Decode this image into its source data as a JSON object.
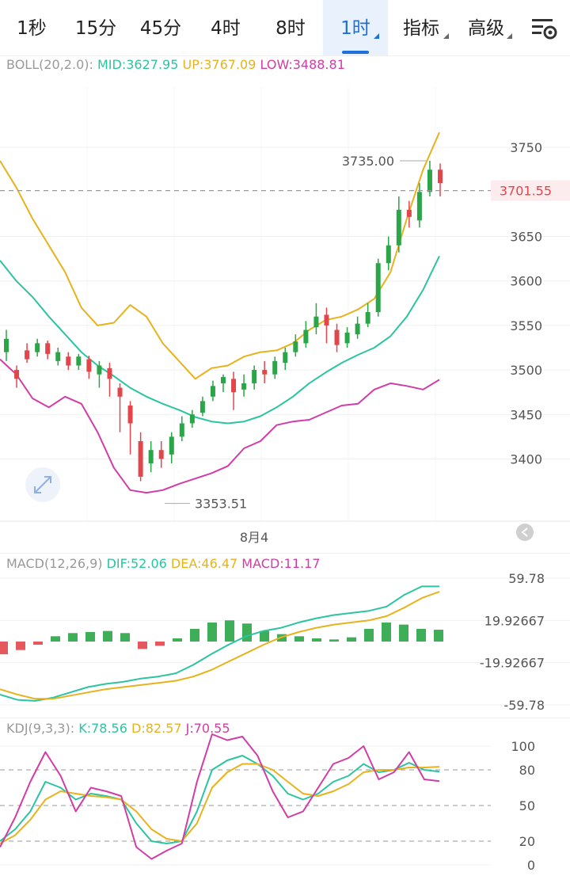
{
  "toolbar": {
    "tabs": [
      {
        "label": "1秒",
        "active": false
      },
      {
        "label": "15分",
        "active": false
      },
      {
        "label": "45分",
        "active": false
      },
      {
        "label": "4时",
        "active": false
      },
      {
        "label": "8时",
        "active": false
      },
      {
        "label": "1时",
        "active": true
      },
      {
        "label": "指标",
        "active": false
      },
      {
        "label": "高级",
        "active": false
      }
    ],
    "settings_icon": "settings-icon"
  },
  "colors": {
    "up": "#e2464b",
    "down": "#2aa547",
    "mid": "#2bc4a1",
    "upper": "#e8b21c",
    "lower": "#d23ca6",
    "dif": "#2bc4a1",
    "dea": "#e8b21c",
    "j": "#d23ca6",
    "price_tag": "#e2464b",
    "active_tab": "#1e6fd9"
  },
  "boll": {
    "name": "BOLL(20,2.0):",
    "mid_label": "MID:3627.95",
    "up_label": "UP:3767.09",
    "low_label": "LOW:3488.81",
    "current_price": "3701.55",
    "high_label": "3735.00",
    "low_mark_label": "3353.51",
    "date_label": "8月4",
    "collapse_icon": "chevron-left-icon",
    "expand_icon": "expand-icon"
  },
  "macd": {
    "name": "MACD(12,26,9)",
    "dif_label": "DIF:52.06",
    "dea_label": "DEA:46.47",
    "macd_label": "MACD:11.17"
  },
  "kdj": {
    "name": "KDJ(9,3,3):",
    "k_label": "K:78.56",
    "d_label": "D:82.57",
    "j_label": "J:70.55"
  },
  "chart_data": [
    {
      "type": "candlestick",
      "title": "BOLL(20,2.0)",
      "ylim": [
        3355,
        3800
      ],
      "y_ticks": [
        3400,
        3450,
        3500,
        3550,
        3600,
        3650,
        3750
      ],
      "x_labels": [
        "8月4"
      ],
      "last_price": 3701.55,
      "max_marked": 3735.0,
      "min_marked": 3353.51,
      "series": [
        {
          "name": "MID",
          "values": [
            3623,
            3600,
            3582,
            3560,
            3540,
            3520,
            3505,
            3493,
            3480,
            3470,
            3462,
            3455,
            3447,
            3442,
            3440,
            3442,
            3448,
            3458,
            3470,
            3485,
            3497,
            3508,
            3517,
            3525,
            3538,
            3560,
            3590,
            3628
          ]
        },
        {
          "name": "UP",
          "values": [
            3735,
            3705,
            3670,
            3640,
            3610,
            3570,
            3550,
            3553,
            3573,
            3560,
            3530,
            3510,
            3490,
            3502,
            3505,
            3515,
            3520,
            3522,
            3530,
            3545,
            3556,
            3560,
            3568,
            3580,
            3610,
            3670,
            3725,
            3767
          ]
        },
        {
          "name": "LOW",
          "values": [
            3512,
            3495,
            3468,
            3458,
            3470,
            3462,
            3430,
            3390,
            3365,
            3362,
            3365,
            3372,
            3378,
            3384,
            3392,
            3412,
            3420,
            3438,
            3442,
            3444,
            3452,
            3460,
            3462,
            3478,
            3485,
            3482,
            3478,
            3489
          ]
        }
      ],
      "candles": [
        [
          3520,
          3535,
          3510,
          3545
        ],
        [
          3500,
          3490,
          3480,
          3505
        ],
        [
          3522,
          3512,
          3508,
          3530
        ],
        [
          3520,
          3530,
          3515,
          3535
        ],
        [
          3530,
          3518,
          3512,
          3533
        ],
        [
          3510,
          3520,
          3505,
          3525
        ],
        [
          3515,
          3505,
          3500,
          3520
        ],
        [
          3505,
          3515,
          3500,
          3518
        ],
        [
          3512,
          3498,
          3490,
          3516
        ],
        [
          3495,
          3505,
          3480,
          3510
        ],
        [
          3502,
          3490,
          3470,
          3508
        ],
        [
          3480,
          3470,
          3430,
          3485
        ],
        [
          3460,
          3440,
          3405,
          3465
        ],
        [
          3420,
          3380,
          3375,
          3430
        ],
        [
          3395,
          3410,
          3385,
          3420
        ],
        [
          3410,
          3400,
          3390,
          3420
        ],
        [
          3405,
          3425,
          3395,
          3430
        ],
        [
          3425,
          3440,
          3420,
          3448
        ],
        [
          3440,
          3450,
          3435,
          3455
        ],
        [
          3452,
          3465,
          3448,
          3470
        ],
        [
          3470,
          3482,
          3465,
          3488
        ],
        [
          3485,
          3492,
          3475,
          3495
        ],
        [
          3490,
          3475,
          3455,
          3498
        ],
        [
          3478,
          3485,
          3470,
          3495
        ],
        [
          3485,
          3500,
          3478,
          3505
        ],
        [
          3500,
          3495,
          3485,
          3510
        ],
        [
          3495,
          3510,
          3490,
          3515
        ],
        [
          3508,
          3520,
          3500,
          3525
        ],
        [
          3520,
          3532,
          3515,
          3540
        ],
        [
          3530,
          3545,
          3525,
          3555
        ],
        [
          3548,
          3560,
          3540,
          3575
        ],
        [
          3562,
          3550,
          3530,
          3570
        ],
        [
          3545,
          3528,
          3520,
          3552
        ],
        [
          3530,
          3542,
          3525,
          3548
        ],
        [
          3540,
          3552,
          3535,
          3560
        ],
        [
          3552,
          3565,
          3548,
          3575
        ],
        [
          3565,
          3620,
          3560,
          3625
        ],
        [
          3620,
          3640,
          3612,
          3650
        ],
        [
          3640,
          3680,
          3632,
          3695
        ],
        [
          3680,
          3672,
          3660,
          3690
        ],
        [
          3668,
          3700,
          3660,
          3710
        ],
        [
          3700,
          3725,
          3695,
          3735
        ],
        [
          3725,
          3710,
          3695,
          3732
        ]
      ]
    },
    {
      "type": "bar",
      "title": "MACD(12,26,9)",
      "ylim": [
        -59.78,
        59.78
      ],
      "y_ticks": [
        59.78,
        19.92667,
        -19.92667,
        -59.78
      ],
      "series": [
        {
          "name": "DIF",
          "values": [
            -50,
            -55,
            -56,
            -53,
            -48,
            -43,
            -40,
            -38,
            -35,
            -33,
            -30,
            -22,
            -12,
            -3,
            5,
            10,
            13,
            18,
            22,
            25,
            27,
            29,
            33,
            44,
            52,
            52
          ]
        },
        {
          "name": "DEA",
          "values": [
            -45,
            -50,
            -54,
            -54,
            -51,
            -48,
            -45,
            -43,
            -41,
            -39,
            -37,
            -33,
            -27,
            -19,
            -11,
            -3,
            4,
            9,
            13,
            16,
            18,
            20,
            24,
            32,
            41,
            47
          ]
        },
        {
          "name": "MACD",
          "values": [
            -12,
            -8,
            -3,
            5,
            8,
            9,
            10,
            8,
            -7,
            -4,
            3,
            12,
            18,
            20,
            17,
            10,
            7,
            5,
            3,
            2,
            4,
            12,
            18,
            16,
            12,
            11.17
          ]
        }
      ]
    },
    {
      "type": "line",
      "title": "KDJ(9,3,3)",
      "ylim": [
        0,
        100
      ],
      "y_ticks": [
        100,
        80,
        50,
        20,
        0
      ],
      "series": [
        {
          "name": "K",
          "values": [
            20,
            30,
            45,
            70,
            65,
            55,
            60,
            58,
            55,
            35,
            20,
            18,
            20,
            45,
            80,
            88,
            92,
            85,
            75,
            60,
            55,
            60,
            70,
            75,
            85,
            78,
            80,
            86,
            80,
            78.56
          ]
        },
        {
          "name": "D",
          "values": [
            18,
            25,
            38,
            55,
            62,
            60,
            58,
            57,
            55,
            45,
            30,
            22,
            20,
            35,
            65,
            78,
            85,
            85,
            80,
            70,
            60,
            58,
            62,
            68,
            78,
            80,
            80,
            82,
            82,
            82.57
          ]
        },
        {
          "name": "J",
          "values": [
            15,
            40,
            70,
            95,
            75,
            45,
            65,
            62,
            58,
            15,
            5,
            12,
            18,
            70,
            110,
            105,
            108,
            92,
            62,
            40,
            45,
            65,
            85,
            90,
            100,
            72,
            78,
            95,
            72,
            70.55
          ]
        }
      ]
    }
  ]
}
